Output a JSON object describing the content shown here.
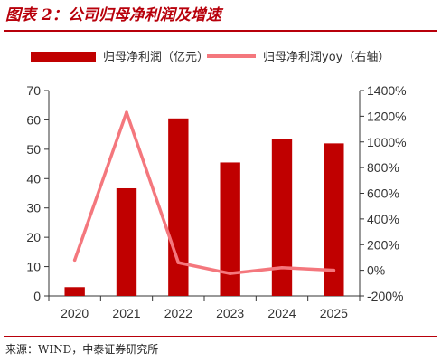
{
  "header": {
    "title": "图表 2：公司归母净利润及增速"
  },
  "footer": {
    "source": "来源：WIND，中泰证券研究所"
  },
  "chart_data": {
    "type": "bar",
    "categories": [
      "2020",
      "2021",
      "2022",
      "2023",
      "2024",
      "2025"
    ],
    "series": [
      {
        "name": "归母净利润（亿元）",
        "type": "bar",
        "axis": "left",
        "color": "#c00000",
        "values": [
          3.0,
          36.7,
          60.5,
          45.5,
          53.5,
          52.0
        ]
      },
      {
        "name": "归母净利润yoy（右轴）",
        "type": "line",
        "axis": "right",
        "color": "#f4777d",
        "values": [
          80,
          1230,
          60,
          -25,
          20,
          0
        ]
      }
    ],
    "left_axis": {
      "min": 0,
      "max": 70,
      "ticks": [
        0,
        10,
        20,
        30,
        40,
        50,
        60,
        70
      ]
    },
    "right_axis": {
      "min": -200,
      "max": 1400,
      "ticks": [
        "-200%",
        "0%",
        "200%",
        "400%",
        "600%",
        "800%",
        "1000%",
        "1200%",
        "1400%"
      ]
    },
    "legend_position": "top",
    "grid": false
  }
}
